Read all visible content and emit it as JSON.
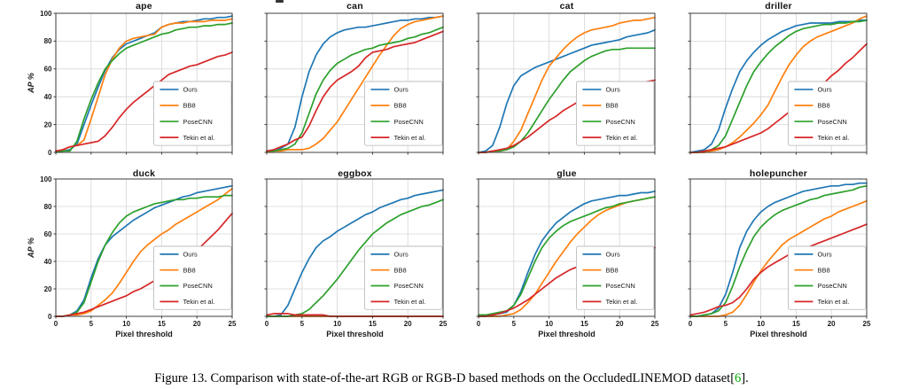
{
  "figure": {
    "caption_prefix": "Figure 13. Comparison with state-of-the-art RGB or RGB-D based methods on the OccludedLINEMOD dataset[",
    "caption_citation": "6",
    "caption_suffix": "].",
    "citation_color": "#00ab00"
  },
  "axes": {
    "xlabel": "Pixel threshold",
    "ylabel": "AP %",
    "x_ticks": [
      0,
      5,
      10,
      15,
      20,
      25
    ],
    "y_ticks": [
      0,
      20,
      40,
      60,
      80,
      100
    ],
    "xlim": [
      0,
      25
    ],
    "ylim": [
      0,
      100
    ],
    "grid": true,
    "legend_position": "lower-right-inside",
    "x_tick_labels_shown_on": "bottom row only",
    "y_tick_labels_shown_on": "left column only"
  },
  "legend_labels": [
    "Ours",
    "BB8",
    "PoseCNN",
    "Tekin et al."
  ],
  "series_colors": {
    "Ours": "#1f77b4",
    "BB8": "#ff7f0e",
    "PoseCNN": "#2ca02c",
    "Tekin et al.": "#d62728"
  },
  "x_values": [
    0,
    1,
    2,
    3,
    4,
    5,
    6,
    7,
    8,
    9,
    10,
    11,
    12,
    13,
    14,
    15,
    16,
    17,
    18,
    19,
    20,
    21,
    22,
    23,
    24,
    25
  ],
  "chart_data": [
    {
      "type": "line",
      "title": "ape",
      "series": [
        {
          "name": "Ours",
          "values": [
            1,
            1,
            2,
            6,
            20,
            34,
            47,
            59,
            68,
            74,
            78,
            80,
            82,
            84,
            86,
            90,
            92,
            93,
            94,
            94,
            95,
            96,
            96,
            97,
            97,
            98
          ]
        },
        {
          "name": "BB8",
          "values": [
            1,
            2,
            4,
            5,
            9,
            24,
            40,
            56,
            67,
            75,
            80,
            82,
            83,
            84,
            85,
            90,
            92,
            93,
            93,
            94,
            94,
            94,
            95,
            95,
            95,
            96
          ]
        },
        {
          "name": "PoseCNN",
          "values": [
            0,
            1,
            1,
            8,
            24,
            38,
            50,
            60,
            66,
            71,
            75,
            77,
            79,
            81,
            83,
            85,
            86,
            88,
            89,
            90,
            90,
            91,
            91,
            92,
            92,
            93
          ]
        },
        {
          "name": "Tekin et al.",
          "values": [
            1,
            2,
            4,
            5,
            6,
            7,
            8,
            12,
            18,
            25,
            31,
            36,
            40,
            44,
            48,
            52,
            56,
            58,
            60,
            62,
            63,
            65,
            67,
            69,
            70,
            72
          ]
        }
      ]
    },
    {
      "type": "line",
      "title": "can",
      "series": [
        {
          "name": "Ours",
          "values": [
            1,
            2,
            3,
            6,
            18,
            40,
            58,
            70,
            78,
            83,
            86,
            88,
            89,
            90,
            90,
            91,
            92,
            93,
            94,
            95,
            95,
            96,
            96,
            97,
            97,
            98
          ]
        },
        {
          "name": "BB8",
          "values": [
            0,
            1,
            1,
            2,
            2,
            2,
            3,
            6,
            10,
            16,
            22,
            30,
            38,
            46,
            54,
            62,
            70,
            77,
            84,
            89,
            92,
            94,
            95,
            96,
            97,
            98
          ]
        },
        {
          "name": "PoseCNN",
          "values": [
            1,
            1,
            2,
            3,
            6,
            14,
            28,
            42,
            52,
            59,
            64,
            67,
            70,
            72,
            74,
            75,
            77,
            78,
            79,
            80,
            82,
            83,
            85,
            86,
            88,
            90
          ]
        },
        {
          "name": "Tekin et al.",
          "values": [
            1,
            2,
            4,
            6,
            9,
            11,
            19,
            30,
            40,
            47,
            52,
            55,
            58,
            62,
            68,
            72,
            73,
            74,
            76,
            77,
            78,
            79,
            81,
            83,
            85,
            87
          ]
        }
      ]
    },
    {
      "type": "line",
      "title": "cat",
      "series": [
        {
          "name": "Ours",
          "values": [
            0,
            1,
            5,
            18,
            35,
            48,
            55,
            58,
            61,
            63,
            65,
            67,
            69,
            71,
            73,
            75,
            77,
            78,
            79,
            80,
            81,
            83,
            84,
            85,
            86,
            88
          ]
        },
        {
          "name": "BB8",
          "values": [
            0,
            0,
            1,
            1,
            2,
            8,
            16,
            28,
            40,
            52,
            62,
            68,
            74,
            79,
            83,
            86,
            88,
            89,
            90,
            91,
            93,
            94,
            95,
            95,
            96,
            97
          ]
        },
        {
          "name": "PoseCNN",
          "values": [
            0,
            0,
            1,
            1,
            2,
            4,
            8,
            14,
            22,
            30,
            38,
            45,
            52,
            58,
            62,
            66,
            69,
            71,
            73,
            74,
            74,
            75,
            75,
            75,
            75,
            75
          ]
        },
        {
          "name": "Tekin et al.",
          "values": [
            0,
            0,
            1,
            2,
            3,
            5,
            8,
            11,
            15,
            19,
            23,
            26,
            30,
            33,
            36,
            38,
            40,
            42,
            44,
            45,
            46,
            48,
            49,
            50,
            51,
            52
          ]
        }
      ]
    },
    {
      "type": "line",
      "title": "driller",
      "series": [
        {
          "name": "Ours",
          "values": [
            0,
            1,
            2,
            6,
            16,
            32,
            46,
            58,
            66,
            72,
            77,
            81,
            84,
            87,
            89,
            91,
            92,
            93,
            93,
            93,
            93,
            94,
            94,
            94,
            95,
            95
          ]
        },
        {
          "name": "BB8",
          "values": [
            0,
            0,
            0,
            1,
            2,
            4,
            7,
            11,
            16,
            21,
            27,
            34,
            44,
            54,
            63,
            70,
            76,
            80,
            83,
            85,
            87,
            89,
            91,
            93,
            96,
            98
          ]
        },
        {
          "name": "PoseCNN",
          "values": [
            0,
            0,
            1,
            2,
            5,
            12,
            24,
            36,
            48,
            58,
            65,
            71,
            76,
            80,
            84,
            87,
            89,
            90,
            91,
            92,
            92,
            93,
            93,
            94,
            94,
            95
          ]
        },
        {
          "name": "Tekin et al.",
          "values": [
            0,
            0,
            1,
            2,
            3,
            4,
            6,
            8,
            10,
            12,
            14,
            17,
            21,
            25,
            29,
            33,
            38,
            42,
            46,
            50,
            55,
            59,
            64,
            68,
            73,
            78
          ]
        }
      ]
    },
    {
      "type": "line",
      "title": "duck",
      "series": [
        {
          "name": "Ours",
          "values": [
            0,
            0,
            1,
            4,
            12,
            28,
            42,
            52,
            58,
            62,
            66,
            70,
            73,
            76,
            79,
            81,
            83,
            85,
            87,
            88,
            90,
            91,
            92,
            93,
            94,
            95
          ]
        },
        {
          "name": "BB8",
          "values": [
            0,
            0,
            1,
            1,
            2,
            4,
            8,
            12,
            17,
            24,
            32,
            40,
            47,
            52,
            56,
            60,
            63,
            67,
            70,
            73,
            76,
            79,
            82,
            85,
            89,
            93
          ]
        },
        {
          "name": "PoseCNN",
          "values": [
            0,
            0,
            1,
            3,
            10,
            25,
            40,
            52,
            61,
            68,
            73,
            76,
            78,
            80,
            82,
            83,
            84,
            85,
            85,
            86,
            86,
            87,
            87,
            87,
            88,
            88
          ]
        },
        {
          "name": "Tekin et al.",
          "values": [
            0,
            0,
            1,
            2,
            3,
            5,
            7,
            9,
            11,
            13,
            15,
            18,
            20,
            23,
            26,
            29,
            32,
            36,
            40,
            44,
            48,
            53,
            58,
            63,
            69,
            75
          ]
        }
      ]
    },
    {
      "type": "line",
      "title": "eggbox",
      "series": [
        {
          "name": "Ours",
          "values": [
            0,
            0,
            1,
            8,
            20,
            32,
            42,
            50,
            55,
            58,
            62,
            65,
            68,
            71,
            74,
            76,
            79,
            81,
            83,
            85,
            86,
            88,
            89,
            90,
            91,
            92
          ]
        },
        {
          "name": "BB8",
          "values": [
            0,
            0,
            0,
            0,
            0,
            0,
            0,
            0,
            0,
            0,
            0,
            0,
            0,
            0,
            0,
            0,
            0,
            0,
            0,
            0,
            0,
            0,
            0,
            0,
            0,
            0
          ]
        },
        {
          "name": "PoseCNN",
          "values": [
            0,
            0,
            0,
            0,
            1,
            2,
            5,
            10,
            15,
            21,
            27,
            34,
            41,
            48,
            54,
            60,
            64,
            68,
            71,
            74,
            76,
            78,
            80,
            81,
            83,
            85
          ]
        },
        {
          "name": "Tekin et al.",
          "values": [
            1,
            2,
            2,
            2,
            1,
            1,
            1,
            1,
            1,
            0,
            0,
            0,
            0,
            0,
            0,
            0,
            0,
            0,
            0,
            0,
            0,
            0,
            0,
            0,
            0,
            0
          ]
        }
      ]
    },
    {
      "type": "line",
      "title": "glue",
      "series": [
        {
          "name": "Ours",
          "values": [
            0,
            0,
            1,
            2,
            3,
            8,
            18,
            32,
            45,
            55,
            62,
            68,
            72,
            76,
            79,
            82,
            84,
            85,
            86,
            87,
            88,
            88,
            89,
            90,
            90,
            91
          ]
        },
        {
          "name": "BB8",
          "values": [
            0,
            0,
            0,
            0,
            1,
            2,
            5,
            10,
            16,
            24,
            32,
            40,
            47,
            54,
            60,
            65,
            70,
            74,
            77,
            79,
            81,
            83,
            84,
            85,
            86,
            87
          ]
        },
        {
          "name": "PoseCNN",
          "values": [
            1,
            1,
            2,
            3,
            4,
            8,
            16,
            28,
            40,
            50,
            57,
            62,
            66,
            69,
            71,
            73,
            75,
            77,
            79,
            80,
            82,
            83,
            84,
            85,
            86,
            87
          ]
        },
        {
          "name": "Tekin et al.",
          "values": [
            0,
            0,
            1,
            2,
            4,
            6,
            9,
            12,
            16,
            20,
            24,
            28,
            31,
            34,
            36,
            38,
            40,
            42,
            43,
            44,
            45,
            46,
            47,
            48,
            49,
            50
          ]
        }
      ]
    },
    {
      "type": "line",
      "title": "holepuncher",
      "series": [
        {
          "name": "Ours",
          "values": [
            0,
            0,
            1,
            2,
            6,
            16,
            32,
            50,
            62,
            70,
            76,
            80,
            83,
            85,
            87,
            89,
            91,
            92,
            93,
            94,
            95,
            95,
            96,
            96,
            97,
            97
          ]
        },
        {
          "name": "BB8",
          "values": [
            0,
            0,
            0,
            0,
            0,
            1,
            3,
            8,
            16,
            25,
            33,
            40,
            46,
            52,
            56,
            59,
            62,
            65,
            68,
            71,
            73,
            76,
            78,
            80,
            82,
            84
          ]
        },
        {
          "name": "PoseCNN",
          "values": [
            0,
            0,
            1,
            2,
            4,
            10,
            22,
            36,
            48,
            58,
            65,
            70,
            74,
            77,
            79,
            81,
            83,
            85,
            86,
            88,
            89,
            90,
            91,
            92,
            94,
            95
          ]
        },
        {
          "name": "Tekin et al.",
          "values": [
            1,
            2,
            3,
            5,
            7,
            8,
            10,
            14,
            20,
            27,
            32,
            36,
            39,
            42,
            45,
            47,
            49,
            51,
            53,
            55,
            57,
            59,
            61,
            63,
            65,
            67
          ]
        }
      ]
    }
  ]
}
